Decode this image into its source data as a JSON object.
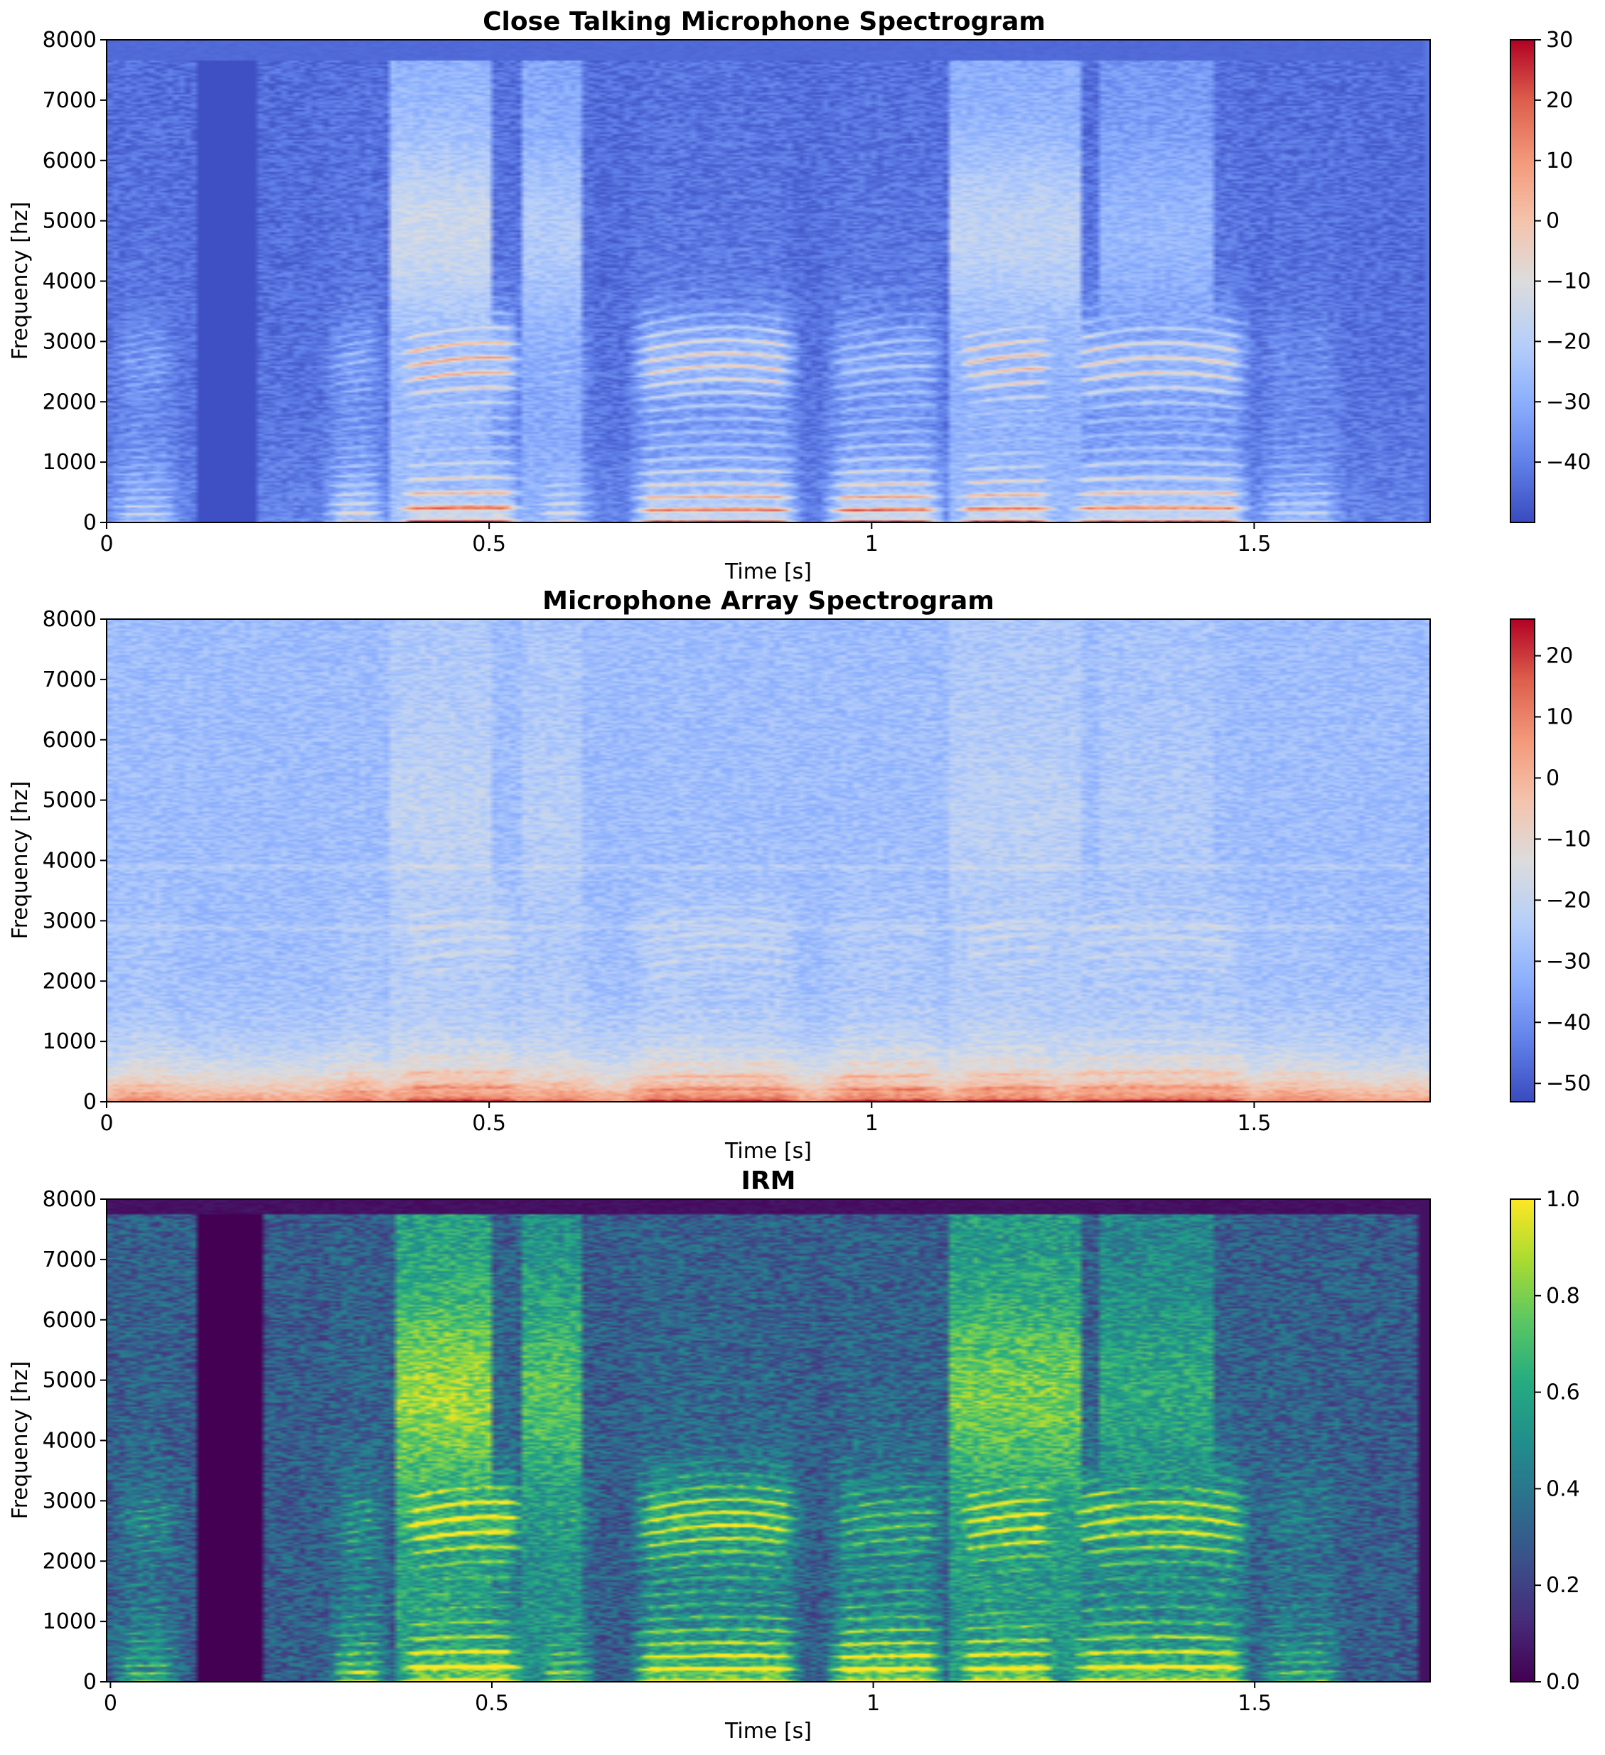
{
  "chart_data": [
    {
      "type": "heatmap",
      "title": "Close Talking Microphone Spectrogram",
      "xlabel": "Time [s]",
      "ylabel": "Frequency [hz]",
      "xlim": [
        0,
        1.73
      ],
      "ylim": [
        0,
        8000
      ],
      "xticks": [
        0,
        0.5,
        1,
        1.5
      ],
      "xtick_labels": [
        "0",
        "0.5",
        "1",
        "1.5"
      ],
      "yticks": [
        0,
        1000,
        2000,
        3000,
        4000,
        5000,
        6000,
        7000,
        8000
      ],
      "ytick_labels": [
        "0",
        "1000",
        "2000",
        "3000",
        "4000",
        "5000",
        "6000",
        "7000",
        "8000"
      ],
      "colormap": "coolwarm",
      "colorbar": {
        "min": -50,
        "max": 30,
        "ticks": [
          -40,
          -30,
          -20,
          -10,
          0,
          10,
          20,
          30
        ],
        "tick_labels": [
          "−40",
          "−30",
          "−20",
          "−10",
          "0",
          "10",
          "20",
          "30"
        ]
      }
    },
    {
      "type": "heatmap",
      "title": "Microphone Array Spectrogram",
      "xlabel": "Time [s]",
      "ylabel": "Frequency [hz]",
      "xlim": [
        0,
        1.73
      ],
      "ylim": [
        0,
        8000
      ],
      "xticks": [
        0,
        0.5,
        1,
        1.5
      ],
      "xtick_labels": [
        "0",
        "0.5",
        "1",
        "1.5"
      ],
      "yticks": [
        0,
        1000,
        2000,
        3000,
        4000,
        5000,
        6000,
        7000,
        8000
      ],
      "ytick_labels": [
        "0",
        "1000",
        "2000",
        "3000",
        "4000",
        "5000",
        "6000",
        "7000",
        "8000"
      ],
      "colormap": "coolwarm",
      "colorbar": {
        "min": -53,
        "max": 26,
        "ticks": [
          -50,
          -40,
          -30,
          -20,
          -10,
          0,
          10,
          20
        ],
        "tick_labels": [
          "−50",
          "−40",
          "−30",
          "−20",
          "−10",
          "0",
          "10",
          "20"
        ]
      }
    },
    {
      "type": "heatmap",
      "title": "IRM",
      "xlabel": "Time [s]",
      "ylabel": "Frequency [hz]",
      "xlim": [
        -0.005,
        1.73
      ],
      "ylim": [
        0,
        8000
      ],
      "xticks": [
        0,
        0.5,
        1,
        1.5
      ],
      "xtick_labels": [
        "0",
        "0.5",
        "1",
        "1.5"
      ],
      "yticks": [
        0,
        1000,
        2000,
        3000,
        4000,
        5000,
        6000,
        7000,
        8000
      ],
      "ytick_labels": [
        "0",
        "1000",
        "2000",
        "3000",
        "4000",
        "5000",
        "6000",
        "7000",
        "8000"
      ],
      "colormap": "viridis",
      "colorbar": {
        "min": 0,
        "max": 1,
        "ticks": [
          0,
          0.2,
          0.4,
          0.6,
          0.8,
          1.0
        ],
        "tick_labels": [
          "0.0",
          "0.2",
          "0.4",
          "0.6",
          "0.8",
          "1.0"
        ]
      }
    }
  ]
}
